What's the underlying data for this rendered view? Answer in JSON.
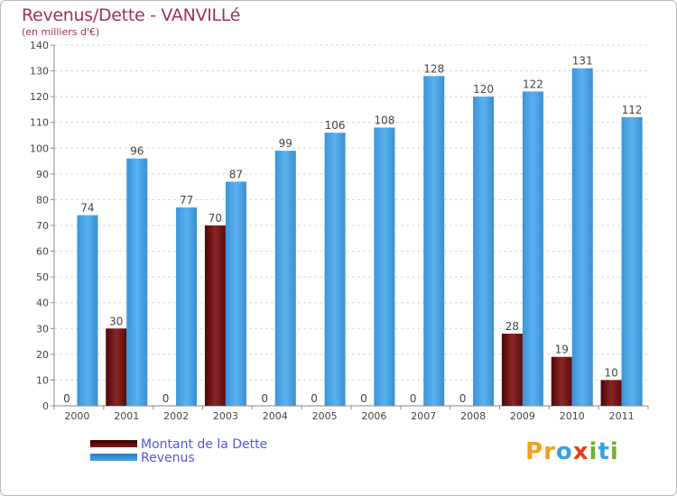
{
  "header": {
    "title": "Revenus/Dette - VANVILLé",
    "subtitle": "(en milliers d'€)"
  },
  "chart_data": {
    "type": "bar",
    "categories": [
      "2000",
      "2001",
      "2002",
      "2003",
      "2004",
      "2005",
      "2006",
      "2007",
      "2008",
      "2009",
      "2010",
      "2011"
    ],
    "series": [
      {
        "name": "Montant de la Dette",
        "values": [
          0,
          30,
          0,
          70,
          0,
          0,
          0,
          0,
          0,
          28,
          19,
          10
        ],
        "color": "#7a1a1a"
      },
      {
        "name": "Revenus",
        "values": [
          74,
          96,
          77,
          87,
          99,
          106,
          108,
          128,
          120,
          122,
          131,
          112
        ],
        "color": "#4aa3e6"
      }
    ],
    "ylim": [
      0,
      140
    ],
    "yticks": [
      0,
      10,
      20,
      30,
      40,
      50,
      60,
      70,
      80,
      90,
      100,
      110,
      120,
      130,
      140
    ],
    "grid": true,
    "legend_position": "bottom-left"
  },
  "logo": {
    "text": "Proxiti",
    "letters": [
      {
        "ch": "P",
        "color": "#f0a020"
      },
      {
        "ch": "r",
        "color": "#f0a020"
      },
      {
        "ch": "o",
        "color": "#3aa0e0"
      },
      {
        "ch": "x",
        "color": "#e04020"
      },
      {
        "ch": "i",
        "color": "#70b030"
      },
      {
        "ch": "t",
        "color": "#3aa0e0"
      },
      {
        "ch": "i",
        "color": "#70b030"
      }
    ]
  }
}
